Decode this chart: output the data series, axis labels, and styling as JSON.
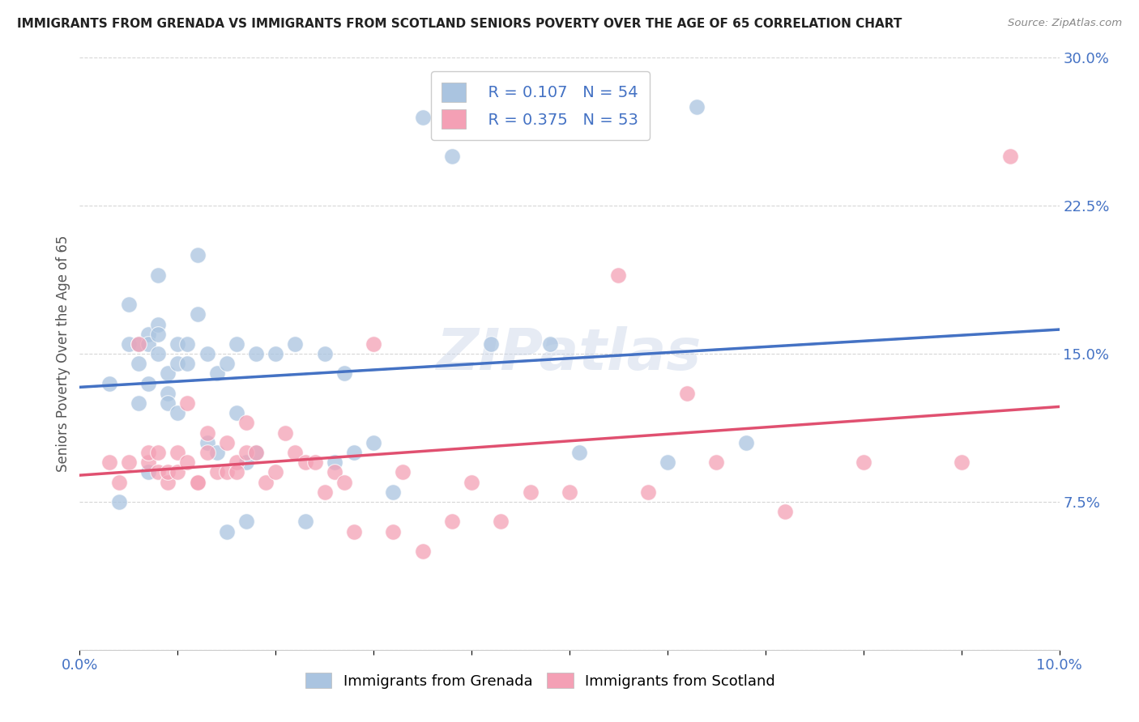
{
  "title": "IMMIGRANTS FROM GRENADA VS IMMIGRANTS FROM SCOTLAND SENIORS POVERTY OVER THE AGE OF 65 CORRELATION CHART",
  "source": "Source: ZipAtlas.com",
  "ylabel": "Seniors Poverty Over the Age of 65",
  "xlim": [
    0.0,
    0.1
  ],
  "ylim": [
    0.0,
    0.3
  ],
  "yticks_right": [
    0.0,
    0.075,
    0.15,
    0.225,
    0.3
  ],
  "yticklabels_right": [
    "",
    "7.5%",
    "15.0%",
    "22.5%",
    "30.0%"
  ],
  "grenada_R": 0.107,
  "grenada_N": 54,
  "scotland_R": 0.375,
  "scotland_N": 53,
  "grenada_color": "#aac4e0",
  "scotland_color": "#f4a0b5",
  "grenada_line_color": "#4472c4",
  "scotland_line_color": "#e05070",
  "dash_line_color": "#9090b0",
  "watermark": "ZIPatlas",
  "background_color": "#ffffff",
  "grid_color": "#cccccc",
  "axis_label_color": "#4472c4",
  "title_color": "#222222",
  "source_color": "#888888",
  "ylabel_color": "#555555",
  "grenada_x": [
    0.003,
    0.004,
    0.005,
    0.005,
    0.006,
    0.006,
    0.006,
    0.007,
    0.007,
    0.007,
    0.007,
    0.008,
    0.008,
    0.008,
    0.008,
    0.009,
    0.009,
    0.009,
    0.01,
    0.01,
    0.01,
    0.011,
    0.011,
    0.012,
    0.012,
    0.013,
    0.013,
    0.014,
    0.014,
    0.015,
    0.015,
    0.016,
    0.016,
    0.017,
    0.017,
    0.018,
    0.018,
    0.02,
    0.022,
    0.023,
    0.025,
    0.026,
    0.027,
    0.028,
    0.03,
    0.032,
    0.035,
    0.038,
    0.042,
    0.048,
    0.051,
    0.06,
    0.063,
    0.068
  ],
  "grenada_y": [
    0.135,
    0.075,
    0.175,
    0.155,
    0.145,
    0.155,
    0.125,
    0.16,
    0.155,
    0.135,
    0.09,
    0.19,
    0.165,
    0.16,
    0.15,
    0.13,
    0.14,
    0.125,
    0.155,
    0.145,
    0.12,
    0.155,
    0.145,
    0.2,
    0.17,
    0.15,
    0.105,
    0.14,
    0.1,
    0.145,
    0.06,
    0.155,
    0.12,
    0.095,
    0.065,
    0.15,
    0.1,
    0.15,
    0.155,
    0.065,
    0.15,
    0.095,
    0.14,
    0.1,
    0.105,
    0.08,
    0.27,
    0.25,
    0.155,
    0.155,
    0.1,
    0.095,
    0.275,
    0.105
  ],
  "scotland_x": [
    0.003,
    0.004,
    0.005,
    0.006,
    0.007,
    0.007,
    0.008,
    0.008,
    0.009,
    0.009,
    0.01,
    0.01,
    0.011,
    0.011,
    0.012,
    0.012,
    0.013,
    0.013,
    0.014,
    0.015,
    0.015,
    0.016,
    0.016,
    0.017,
    0.017,
    0.018,
    0.019,
    0.02,
    0.021,
    0.022,
    0.023,
    0.024,
    0.025,
    0.026,
    0.027,
    0.028,
    0.03,
    0.032,
    0.033,
    0.035,
    0.038,
    0.04,
    0.043,
    0.046,
    0.05,
    0.055,
    0.058,
    0.062,
    0.065,
    0.072,
    0.08,
    0.09,
    0.095
  ],
  "scotland_y": [
    0.095,
    0.085,
    0.095,
    0.155,
    0.095,
    0.1,
    0.09,
    0.1,
    0.085,
    0.09,
    0.09,
    0.1,
    0.095,
    0.125,
    0.085,
    0.085,
    0.11,
    0.1,
    0.09,
    0.09,
    0.105,
    0.095,
    0.09,
    0.115,
    0.1,
    0.1,
    0.085,
    0.09,
    0.11,
    0.1,
    0.095,
    0.095,
    0.08,
    0.09,
    0.085,
    0.06,
    0.155,
    0.06,
    0.09,
    0.05,
    0.065,
    0.085,
    0.065,
    0.08,
    0.08,
    0.19,
    0.08,
    0.13,
    0.095,
    0.07,
    0.095,
    0.095,
    0.25
  ]
}
